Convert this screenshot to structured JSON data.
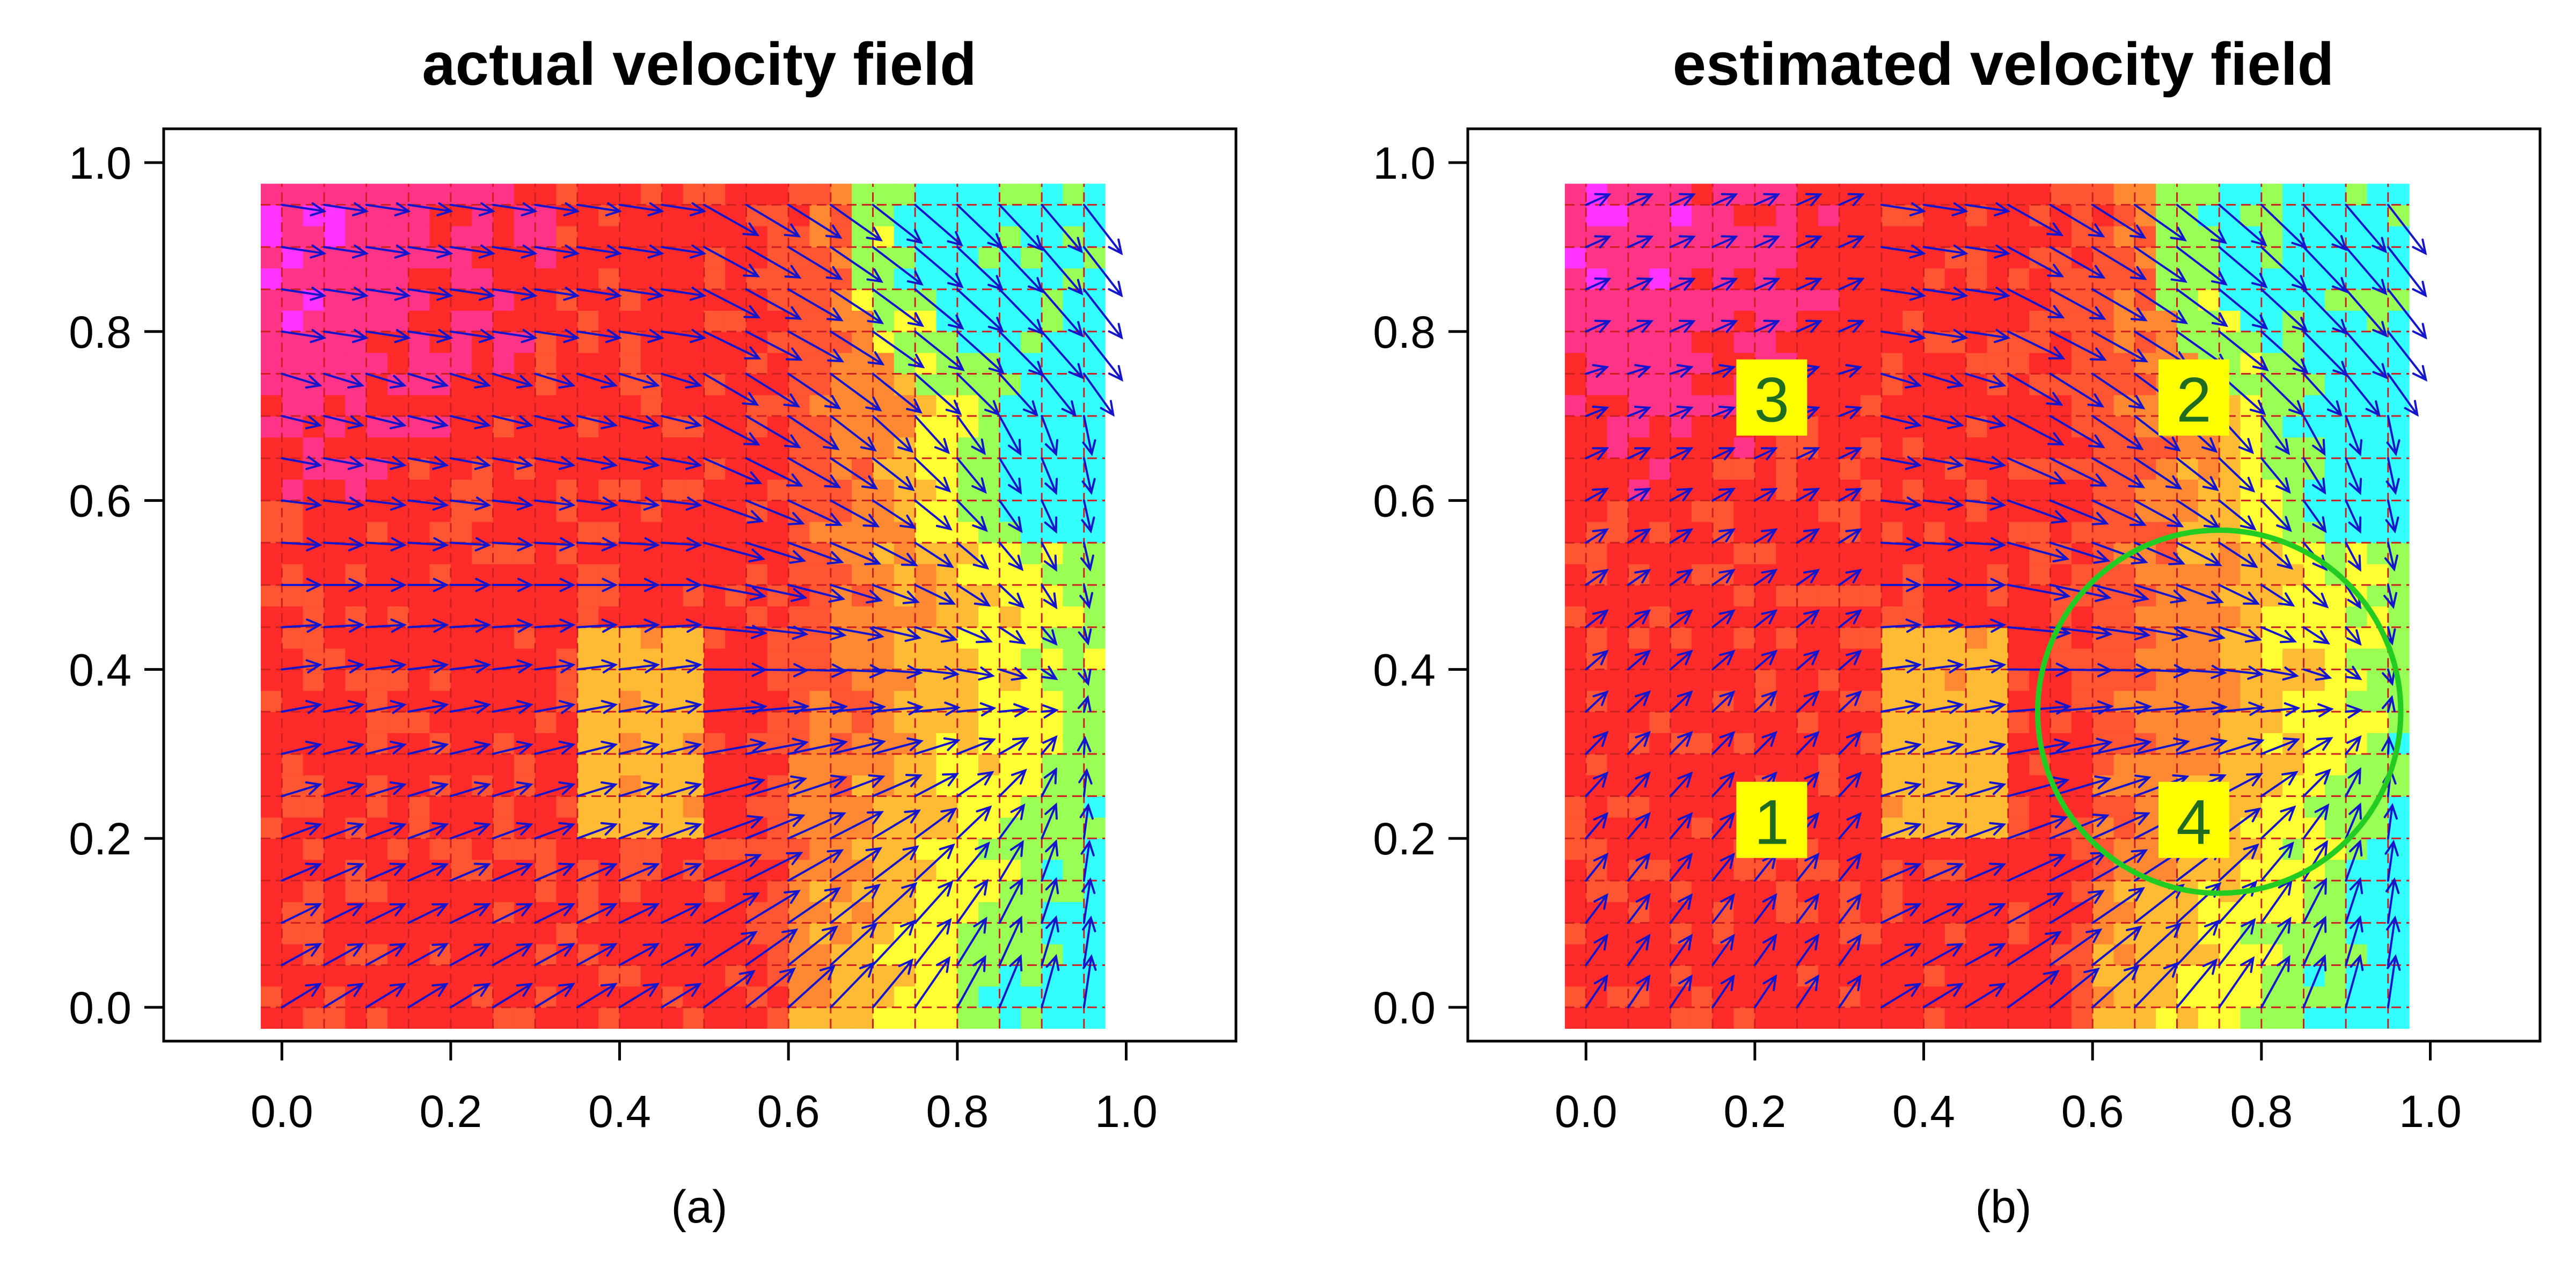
{
  "chart_data": [
    {
      "type": "heatmap",
      "title": "actual velocity field",
      "caption": "(a)",
      "xlim": [
        -0.14,
        1.13
      ],
      "ylim": [
        -0.04,
        1.04
      ],
      "x_ticks": [
        "0.0",
        "0.2",
        "0.4",
        "0.6",
        "0.8",
        "1.0"
      ],
      "y_ticks": [
        "0.0",
        "0.2",
        "0.4",
        "0.6",
        "0.8",
        "1.0"
      ],
      "grid": {
        "n": 20,
        "x_range": [
          -0.025,
          0.975
        ],
        "y_range": [
          -0.025,
          0.975
        ]
      },
      "vector_field": "actual",
      "annotations": []
    },
    {
      "type": "heatmap",
      "title": "estimated velocity field",
      "caption": "(b)",
      "xlim": [
        -0.14,
        1.13
      ],
      "ylim": [
        -0.04,
        1.04
      ],
      "x_ticks": [
        "0.0",
        "0.2",
        "0.4",
        "0.6",
        "0.8",
        "1.0"
      ],
      "y_ticks": [
        "0.0",
        "0.2",
        "0.4",
        "0.6",
        "0.8",
        "1.0"
      ],
      "grid": {
        "n": 20,
        "x_range": [
          -0.025,
          0.975
        ],
        "y_range": [
          -0.025,
          0.975
        ]
      },
      "vector_field": "estimated",
      "annotations": [
        {
          "text": "1",
          "x": 0.22,
          "y": 0.22
        },
        {
          "text": "2",
          "x": 0.72,
          "y": 0.72
        },
        {
          "text": "3",
          "x": 0.22,
          "y": 0.72
        },
        {
          "text": "4",
          "x": 0.72,
          "y": 0.22
        }
      ],
      "circle": {
        "cx": 0.75,
        "cy": 0.35,
        "r": 0.215,
        "color": "#22cc22"
      }
    }
  ],
  "colors": {
    "arrow": "#1515cc",
    "grid_line": "#cc2020",
    "circle": "#22cc22",
    "label_box": "#ffff00",
    "label_text": "#1f6b1f",
    "palette": [
      "#ff33ff",
      "#ff3388",
      "#ff2a2a",
      "#ff5533",
      "#ff8833",
      "#ffbb33",
      "#ffff33",
      "#99ff55",
      "#33ffff"
    ]
  }
}
